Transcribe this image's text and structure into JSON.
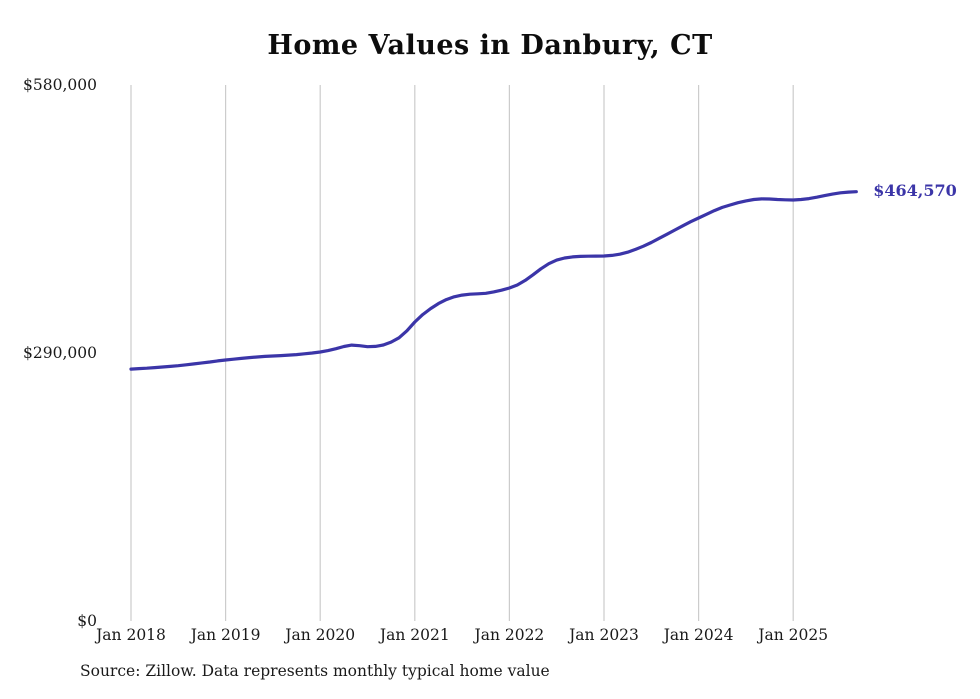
{
  "chart_data": {
    "type": "line",
    "title": "Home Values in Danbury, CT",
    "subtitle": "",
    "xlabel": "",
    "ylabel": "",
    "ylim": [
      0,
      580000
    ],
    "grid": "vertical",
    "legend": "none",
    "end_label": "$464,570",
    "latest_value": 464570,
    "source": "Source: Zillow. Data represents monthly typical home value",
    "colors": {
      "line": "#3b35a8",
      "grid": "#cccccc",
      "text": "#1a1a1a",
      "title": "#0d0d0d"
    },
    "y_ticks": [
      {
        "label": "$0",
        "value": 0
      },
      {
        "label": "$290,000",
        "value": 290000
      },
      {
        "label": "$580,000",
        "value": 580000
      }
    ],
    "x_ticks": [
      {
        "label": "Jan 2018",
        "year": 2018
      },
      {
        "label": "Jan 2019",
        "year": 2019
      },
      {
        "label": "Jan 2020",
        "year": 2020
      },
      {
        "label": "Jan 2021",
        "year": 2021
      },
      {
        "label": "Jan 2022",
        "year": 2022
      },
      {
        "label": "Jan 2023",
        "year": 2023
      },
      {
        "label": "Jan 2024",
        "year": 2024
      },
      {
        "label": "Jan 2025",
        "year": 2025
      }
    ],
    "series": [
      {
        "name": "Typical home value",
        "color": "#3b35a8",
        "x_start": "2018-01",
        "x_interval": "month",
        "values": [
          272600,
          273100,
          273600,
          274200,
          274800,
          275500,
          276300,
          277200,
          278200,
          279300,
          280300,
          281400,
          282400,
          283300,
          284200,
          285000,
          285700,
          286300,
          286800,
          287200,
          287700,
          288300,
          289100,
          290000,
          291100,
          292600,
          294600,
          297000,
          298600,
          297900,
          296800,
          297100,
          298700,
          301800,
          306500,
          314000,
          323500,
          331500,
          338000,
          343500,
          347800,
          350800,
          352600,
          353600,
          354100,
          354600,
          356100,
          358000,
          360300,
          363600,
          368600,
          374600,
          381100,
          386600,
          390500,
          392800,
          394000,
          394500,
          394800,
          394900,
          395000,
          395600,
          396900,
          399100,
          402100,
          405600,
          409600,
          414100,
          418600,
          423100,
          427600,
          432100,
          436100,
          440100,
          444100,
          447600,
          450200,
          452600,
          454600,
          456100,
          456700,
          456600,
          456100,
          455800,
          455600,
          456100,
          457100,
          458600,
          460300,
          461900,
          463300,
          464100,
          464570
        ]
      }
    ]
  }
}
